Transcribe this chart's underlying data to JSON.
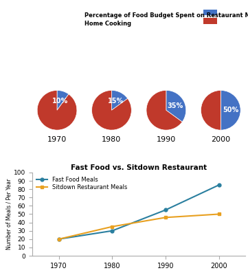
{
  "pie_years": [
    "1970",
    "1980",
    "1990",
    "2000"
  ],
  "pie_restaurant_pct": [
    10,
    15,
    35,
    50
  ],
  "pie_color_restaurant": "#4472C4",
  "pie_color_home": "#C0392B",
  "legend_restaurant": "Percentage of Food Budget Spent on Restaurant Meals",
  "legend_home": "Home Cooking",
  "line_years": [
    1970,
    1980,
    1990,
    2000
  ],
  "fastfood_values": [
    20,
    30,
    55,
    85
  ],
  "sitdown_values": [
    20,
    35,
    46,
    50
  ],
  "line_title": "Fast Food vs. Sitdown Restaurant",
  "line_label_fast": "Fast Food Meals",
  "line_label_sit": "Sitdown Restaurant Meals",
  "line_color_fast": "#2A7F9F",
  "line_color_sit": "#E8A020",
  "ylabel_line": "Number of Meals / Per Year",
  "ylim_line": [
    0,
    100
  ],
  "yticks_line": [
    0,
    10,
    20,
    30,
    40,
    50,
    60,
    70,
    80,
    90,
    100
  ],
  "bg_color": "#FFFFFF"
}
